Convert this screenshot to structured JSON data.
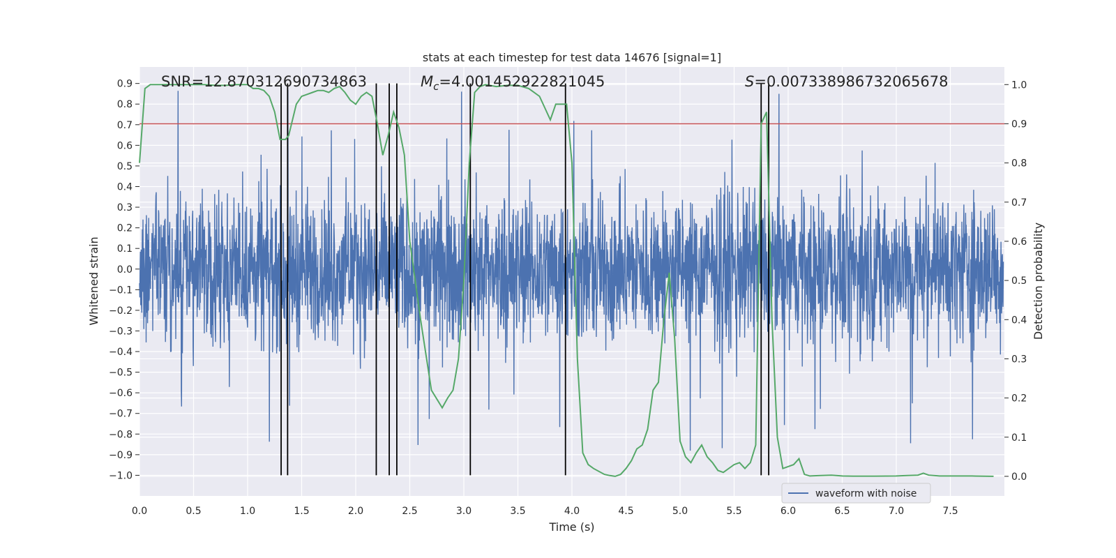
{
  "chart_data": {
    "type": "line",
    "title": "stats at each timestep for test data 14676 [signal=1]",
    "xlabel": "Time (s)",
    "ylabel": "Whitened strain",
    "y2label": "Detection probability",
    "xlim": [
      0.0,
      8.0
    ],
    "ylim": [
      -1.1,
      0.98
    ],
    "y2lim": [
      -0.05,
      1.045
    ],
    "x_ticks": [
      "0.0",
      "0.5",
      "1.0",
      "1.5",
      "2.0",
      "2.5",
      "3.0",
      "3.5",
      "4.0",
      "4.5",
      "5.0",
      "5.5",
      "6.0",
      "6.5",
      "7.0",
      "7.5"
    ],
    "y_ticks": [
      "0.9",
      "0.8",
      "0.7",
      "0.6",
      "0.5",
      "0.4",
      "0.3",
      "0.2",
      "0.1",
      "0.0",
      "−0.1",
      "−0.2",
      "−0.3",
      "−0.4",
      "−0.5",
      "−0.6",
      "−0.7",
      "−0.8",
      "−0.9",
      "−1.0"
    ],
    "y2_ticks": [
      "1.0",
      "0.9",
      "0.8",
      "0.7",
      "0.6",
      "0.5",
      "0.4",
      "0.3",
      "0.2",
      "0.1",
      "0.0"
    ],
    "grid": true,
    "annotations": {
      "snr": "SNR=12.870312690734863",
      "mc_prefix": "M",
      "mc_sub": "c",
      "mc_value": "=4.001452922821045",
      "s_prefix": "S",
      "s_value": "=0.007338986732065678"
    },
    "threshold": {
      "axis": "right",
      "value": 0.9,
      "color": "#c44e52"
    },
    "vertical_lines": [
      1.31,
      1.37,
      2.19,
      2.31,
      2.38,
      3.06,
      3.94,
      5.75,
      5.82
    ],
    "vertical_line_range": [
      -1.0,
      0.9
    ],
    "legend": {
      "position": "lower-right",
      "entries": [
        "waveform with noise"
      ]
    },
    "series": [
      {
        "name": "waveform with noise",
        "axis": "left",
        "color": "#4c72b0",
        "description_envelope": {
          "dense_amplitude": 0.33,
          "peak_max": 0.87,
          "trough_min": -1.0
        }
      },
      {
        "axis": "right",
        "color": "#55a868",
        "x": [
          0.0,
          0.05,
          0.1,
          0.2,
          0.3,
          0.4,
          0.5,
          0.6,
          0.7,
          0.8,
          0.9,
          1.0,
          1.05,
          1.1,
          1.15,
          1.2,
          1.25,
          1.3,
          1.35,
          1.38,
          1.45,
          1.5,
          1.55,
          1.6,
          1.65,
          1.7,
          1.75,
          1.8,
          1.85,
          1.9,
          1.95,
          2.0,
          2.05,
          2.1,
          2.15,
          2.2,
          2.25,
          2.3,
          2.35,
          2.4,
          2.45,
          2.5,
          2.6,
          2.7,
          2.8,
          2.85,
          2.9,
          2.95,
          3.0,
          3.05,
          3.1,
          3.15,
          3.2,
          3.3,
          3.4,
          3.5,
          3.6,
          3.7,
          3.75,
          3.8,
          3.85,
          3.9,
          3.95,
          4.0,
          4.05,
          4.1,
          4.15,
          4.2,
          4.3,
          4.35,
          4.4,
          4.45,
          4.5,
          4.55,
          4.6,
          4.65,
          4.7,
          4.75,
          4.8,
          4.85,
          4.9,
          4.95,
          5.0,
          5.05,
          5.1,
          5.15,
          5.2,
          5.25,
          5.3,
          5.35,
          5.4,
          5.5,
          5.55,
          5.6,
          5.65,
          5.7,
          5.75,
          5.8,
          5.85,
          5.9,
          5.95,
          6.0,
          6.05,
          6.1,
          6.15,
          6.2,
          6.3,
          6.4,
          6.5,
          6.6,
          6.8,
          7.0,
          7.1,
          7.2,
          7.25,
          7.3,
          7.4,
          7.5,
          7.7,
          7.9
        ],
        "values": [
          0.8,
          0.99,
          1.0,
          1.0,
          1.0,
          1.0,
          1.0,
          1.0,
          0.998,
          0.998,
          1.0,
          1.0,
          0.99,
          0.99,
          0.985,
          0.97,
          0.93,
          0.86,
          0.86,
          0.87,
          0.95,
          0.97,
          0.975,
          0.98,
          0.985,
          0.985,
          0.98,
          0.99,
          0.995,
          0.98,
          0.96,
          0.95,
          0.97,
          0.98,
          0.97,
          0.9,
          0.82,
          0.87,
          0.93,
          0.89,
          0.82,
          0.6,
          0.4,
          0.22,
          0.175,
          0.2,
          0.22,
          0.3,
          0.5,
          0.8,
          0.98,
          0.995,
          1.0,
          0.995,
          0.998,
          0.998,
          0.99,
          0.97,
          0.94,
          0.91,
          0.95,
          0.95,
          0.95,
          0.8,
          0.3,
          0.06,
          0.03,
          0.02,
          0.005,
          0.002,
          0.0,
          0.005,
          0.02,
          0.04,
          0.07,
          0.08,
          0.12,
          0.22,
          0.24,
          0.4,
          0.52,
          0.35,
          0.09,
          0.05,
          0.035,
          0.06,
          0.08,
          0.05,
          0.035,
          0.015,
          0.01,
          0.03,
          0.035,
          0.02,
          0.035,
          0.08,
          0.9,
          0.93,
          0.4,
          0.1,
          0.02,
          0.025,
          0.03,
          0.045,
          0.005,
          0.001,
          0.002,
          0.003,
          0.001,
          0.0005,
          0.0005,
          0.001,
          0.002,
          0.003,
          0.008,
          0.003,
          0.001,
          0.001,
          0.001,
          0.0
        ]
      }
    ]
  }
}
